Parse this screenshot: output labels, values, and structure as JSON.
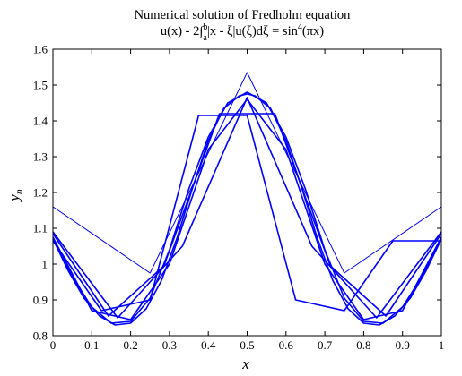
{
  "chart_data": {
    "type": "line",
    "title": "Numerical solution of Fredholm equation",
    "subtitle": {
      "before_bounds": "u(x) - 2∫",
      "upper_bound": "b",
      "lower_bound": "a",
      "after_bounds": "|x - ξ|u(ξ)dξ = sin",
      "exponent": "4",
      "tail": "(πx)"
    },
    "xlabel": "x",
    "ylabel": {
      "base": "y",
      "subscript": "n"
    },
    "xlim": [
      0,
      1
    ],
    "ylim": [
      0.8,
      1.6
    ],
    "xticks": [
      0,
      0.1,
      0.2,
      0.3,
      0.4,
      0.5,
      0.6,
      0.7,
      0.8,
      0.9,
      1
    ],
    "xtick_labels": [
      "0",
      "0.1",
      "0.2",
      "0.3",
      "0.4",
      "0.5",
      "0.6",
      "0.7",
      "0.8",
      "0.9",
      "1"
    ],
    "yticks": [
      0.8,
      0.9,
      1,
      1.1,
      1.2,
      1.3,
      1.4,
      1.5,
      1.6
    ],
    "ytick_labels": [
      "0.8",
      "0.9",
      "1",
      "1.1",
      "1.2",
      "1.3",
      "1.4",
      "1.5",
      "1.6"
    ],
    "grid": false,
    "legend": "none",
    "line_color": "#0000ff",
    "series": [
      {
        "x": [
          0,
          0.25,
          0.5,
          0.75,
          1
        ],
        "y": [
          1.16,
          0.975,
          1.535,
          0.975,
          1.16
        ]
      },
      {
        "x": [
          0,
          0.1667,
          0.3333,
          0.5,
          0.6667,
          0.8333,
          1
        ],
        "y": [
          1.09,
          0.85,
          1.05,
          1.465,
          1.05,
          0.85,
          1.09
        ]
      },
      {
        "x": [
          0,
          0.125,
          0.25,
          0.375,
          0.5,
          0.625,
          0.75,
          0.875,
          1
        ],
        "y": [
          1.065,
          0.87,
          0.9,
          1.415,
          1.415,
          0.9,
          0.87,
          1.065,
          1.065
        ]
      },
      {
        "x": [
          0,
          0.1,
          0.2,
          0.3,
          0.4,
          0.5,
          0.6,
          0.7,
          0.8,
          0.9,
          1
        ],
        "y": [
          1.075,
          0.87,
          0.845,
          1.0,
          1.32,
          1.46,
          1.32,
          1.0,
          0.845,
          0.87,
          1.075
        ]
      },
      {
        "x": [
          0,
          0.1429,
          0.2857,
          0.4286,
          0.5714,
          0.7143,
          0.8571,
          1
        ],
        "y": [
          1.085,
          0.855,
          0.995,
          1.42,
          1.42,
          0.995,
          0.855,
          1.085
        ]
      },
      {
        "x": [
          0,
          0.05,
          0.1,
          0.15,
          0.2,
          0.25,
          0.3,
          0.35,
          0.4,
          0.45,
          0.5,
          0.55,
          0.6,
          0.65,
          0.7,
          0.75,
          0.8,
          0.85,
          0.9,
          0.95,
          1
        ],
        "y": [
          1.075,
          0.965,
          0.88,
          0.835,
          0.84,
          0.905,
          1.04,
          1.21,
          1.355,
          1.45,
          1.48,
          1.45,
          1.355,
          1.21,
          1.04,
          0.905,
          0.84,
          0.835,
          0.88,
          0.965,
          1.075
        ]
      },
      {
        "x": [
          0,
          0.04,
          0.08,
          0.12,
          0.16,
          0.2,
          0.24,
          0.28,
          0.32,
          0.36,
          0.4,
          0.44,
          0.48,
          0.5,
          0.52,
          0.56,
          0.6,
          0.64,
          0.68,
          0.72,
          0.76,
          0.8,
          0.84,
          0.88,
          0.92,
          0.96,
          1
        ],
        "y": [
          1.07,
          0.98,
          0.905,
          0.855,
          0.83,
          0.835,
          0.875,
          0.955,
          1.075,
          1.215,
          1.345,
          1.435,
          1.47,
          1.475,
          1.47,
          1.435,
          1.345,
          1.215,
          1.075,
          0.955,
          0.875,
          0.835,
          0.83,
          0.855,
          0.905,
          0.98,
          1.07
        ]
      }
    ]
  }
}
